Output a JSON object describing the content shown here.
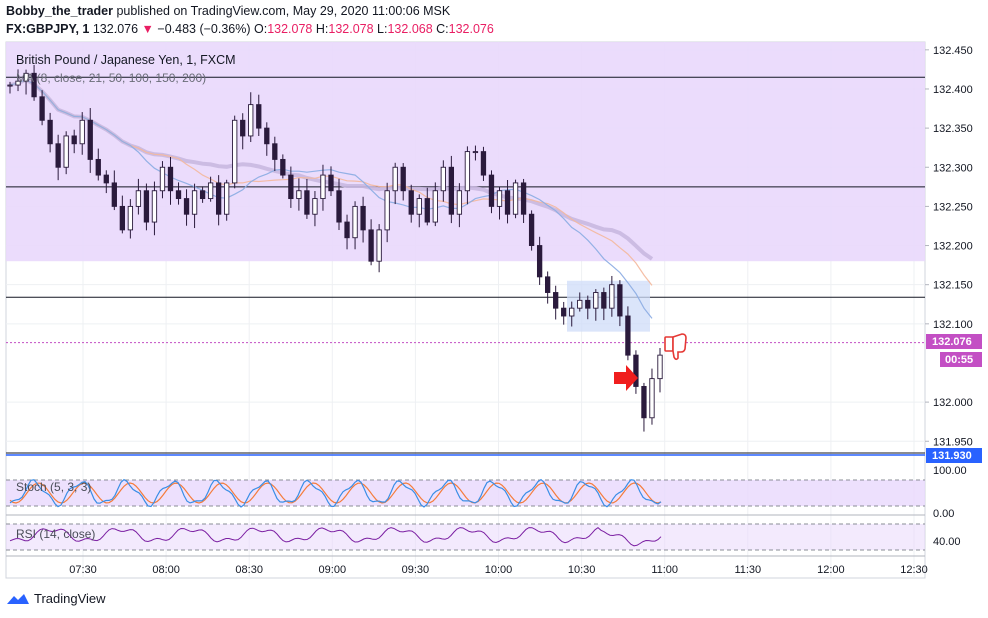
{
  "header": {
    "author": "Bobby_the_trader",
    "published_text": " published on TradingView.com, May 29, 2020 11:00:06 MSK",
    "symbol_line": "FX:GBPJPY, 1",
    "last": "132.076",
    "change_arrow": "▼",
    "change": "−0.483 (−0.36%)",
    "o_label": "O:",
    "o": "132.078",
    "h_label": "H:",
    "h": "132.078",
    "l_label": "L:",
    "l": "132.068",
    "c_label": "C:",
    "c": "132.076"
  },
  "legend": {
    "instrument": "British Pound / Japanese Yen, 1, FXCM",
    "ma": "MA (8, close, 21, 50, 100, 150, 200)",
    "stoch": "Stoch (5, 3, 3)",
    "rsi": "RSI (14, close)"
  },
  "price_labels": {
    "last": "132.076",
    "countdown": "00:55",
    "level": "131.930"
  },
  "footer": {
    "brand": "TradingView"
  },
  "colors": {
    "zone_fill": "#e9d8fc",
    "candle": "#2a1a3c",
    "ma_purple": "#c9b8e0",
    "ma_orange": "#f4b89c",
    "ma_blue": "#8eaee4",
    "last_label_bg": "#c34fc4",
    "level_label_bg": "#2962ff",
    "stoch_k": "#3a8ee6",
    "stoch_d": "#f57c3b",
    "rsi": "#7b1fa2"
  },
  "chart_data": {
    "type": "candlestick",
    "y_ticks": [
      "132.450",
      "132.400",
      "132.350",
      "132.300",
      "132.250",
      "132.200",
      "132.150",
      "132.100",
      "132.000",
      "131.950"
    ],
    "ylim": [
      131.935,
      132.46
    ],
    "x_ticks": [
      "07:30",
      "08:00",
      "08:30",
      "09:00",
      "09:30",
      "10:00",
      "10:30",
      "11:00",
      "11:30",
      "12:00",
      "12:30"
    ],
    "close_path": [
      132.405,
      132.41,
      132.42,
      132.39,
      132.36,
      132.33,
      132.3,
      132.34,
      132.33,
      132.36,
      132.31,
      132.29,
      132.28,
      132.25,
      132.22,
      132.25,
      132.27,
      132.23,
      132.27,
      132.3,
      132.27,
      132.26,
      132.24,
      132.27,
      132.26,
      132.28,
      132.24,
      132.28,
      132.36,
      132.34,
      132.38,
      132.35,
      132.33,
      132.31,
      132.29,
      132.26,
      132.27,
      132.24,
      132.26,
      132.29,
      132.27,
      132.23,
      132.21,
      132.25,
      132.22,
      132.18,
      132.22,
      132.27,
      132.3,
      132.27,
      132.24,
      132.26,
      132.23,
      132.27,
      132.3,
      132.24,
      132.27,
      132.32,
      132.32,
      132.29,
      132.25,
      132.27,
      132.24,
      132.28,
      132.24,
      132.2,
      132.16,
      132.14,
      132.12,
      132.11,
      132.12,
      132.13,
      132.12,
      132.14,
      132.12,
      132.15,
      132.11,
      132.06,
      132.02,
      131.98,
      132.03,
      132.06
    ],
    "annotations": {
      "resistance_zone": [
        132.18,
        132.46
      ],
      "horizontal_lines": [
        132.415,
        132.275,
        132.134
      ],
      "consolidation_box": {
        "from": 132.09,
        "to": 132.155
      },
      "last_price": 132.076,
      "level": 131.93
    },
    "stoch_ticks": [
      "100.00",
      "0.00"
    ],
    "rsi_ticks": [
      "40.00"
    ]
  }
}
